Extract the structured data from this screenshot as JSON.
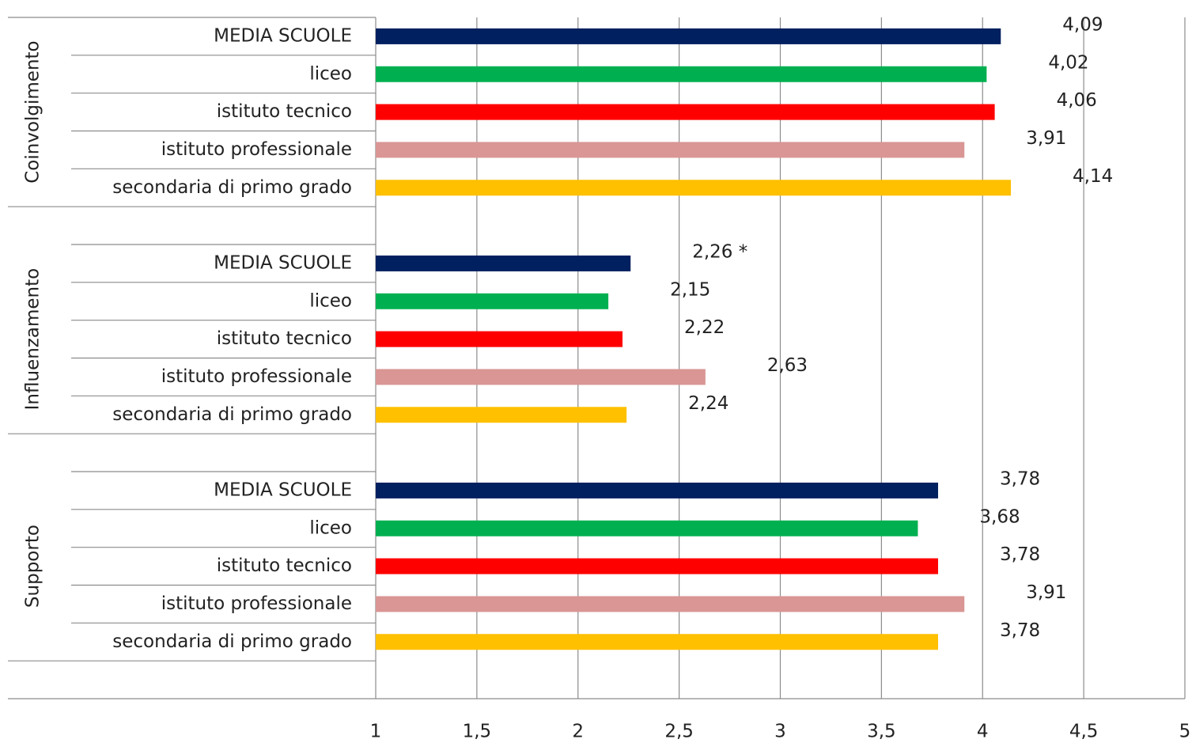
{
  "chart_data": {
    "type": "bar",
    "orientation": "horizontal",
    "groups": [
      "Coinvolgimento",
      "Influenzamento",
      "Supporto"
    ],
    "categories": [
      "MEDIA SCUOLE",
      "liceo",
      "istituto tecnico",
      "istituto professionale",
      "secondaria di primo grado"
    ],
    "colors": [
      "#002060",
      "#00b050",
      "#ff0000",
      "#d99694",
      "#ffc000"
    ],
    "values": [
      [
        4.09,
        4.02,
        4.06,
        3.91,
        4.14
      ],
      [
        2.26,
        2.15,
        2.22,
        2.63,
        2.24
      ],
      [
        3.78,
        3.68,
        3.78,
        3.91,
        3.78
      ]
    ],
    "value_labels": [
      [
        "4,09",
        "4,02",
        "4,06",
        "3,91",
        "4,14"
      ],
      [
        "2,26 *",
        "2,15",
        "2,22",
        "2,63",
        "2,24"
      ],
      [
        "3,78",
        "3,68",
        "3,78",
        "3,91",
        "3,78"
      ]
    ],
    "xlim": [
      1,
      5
    ],
    "xticks": [
      1,
      {
        "value": 1.5,
        "label": "1,5"
      },
      2,
      {
        "value": 2.5,
        "label": "2,5"
      },
      3,
      {
        "value": 3.5,
        "label": "3,5"
      },
      4,
      {
        "value": 4.5,
        "label": "4,5"
      },
      5
    ],
    "grid": true
  }
}
